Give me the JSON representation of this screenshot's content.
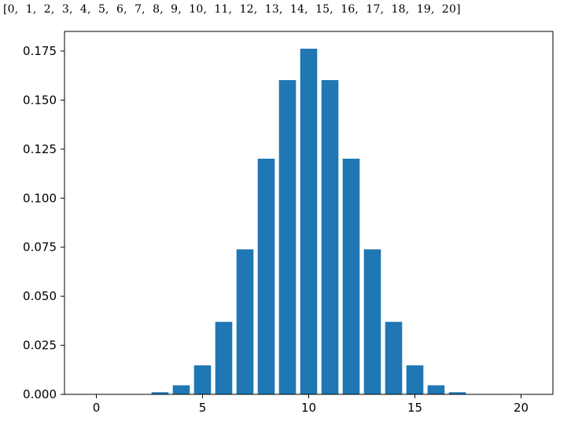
{
  "console_output": "[0,  1,  2,  3,  4,  5,  6,  7,  8,  9,  10,  11,  12,  13,  14,  15,  16,  17,  18,  19,  20]",
  "chart_data": {
    "type": "bar",
    "x": [
      0,
      1,
      2,
      3,
      4,
      5,
      6,
      7,
      8,
      9,
      10,
      11,
      12,
      13,
      14,
      15,
      16,
      17,
      18,
      19,
      20
    ],
    "values": [
      1e-06,
      1.9e-05,
      0.000181,
      0.001087,
      0.004621,
      0.014786,
      0.036964,
      0.073929,
      0.120134,
      0.160179,
      0.176197,
      0.160179,
      0.120134,
      0.073929,
      0.036964,
      0.014786,
      0.004621,
      0.001087,
      0.000181,
      1.9e-05,
      1e-06
    ],
    "xticks": [
      "0",
      "5",
      "10",
      "15",
      "20"
    ],
    "yticks": [
      "0.000",
      "0.025",
      "0.050",
      "0.075",
      "0.100",
      "0.125",
      "0.150",
      "0.175"
    ],
    "xlim": [
      -1.5,
      21.5
    ],
    "ylim": [
      0,
      0.185
    ],
    "bar_color": "#1f77b4",
    "title": "",
    "xlabel": "",
    "ylabel": "",
    "grid": false
  }
}
